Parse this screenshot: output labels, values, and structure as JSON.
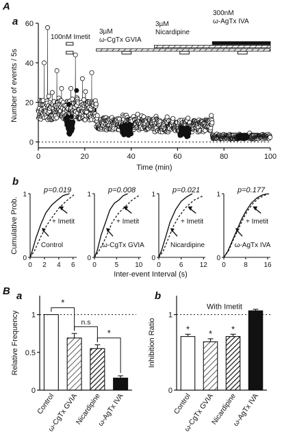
{
  "panel_labels": {
    "A": "A",
    "a_top": "a",
    "b_mid": "b",
    "B": "B",
    "a_bottom": "a",
    "b_bottom": "b"
  },
  "colors": {
    "ink": "#111111",
    "open_marker": "#ffffff",
    "filled_marker": "#111111"
  },
  "chart_data": [
    {
      "id": "A-a",
      "type": "scatter",
      "title": "",
      "xlabel": "Time (min)",
      "ylabel": "Number of events / 5s",
      "xlim": [
        0,
        100
      ],
      "ylim": [
        -3,
        60
      ],
      "xticks": [
        "0",
        "20",
        "40",
        "60",
        "80",
        "100"
      ],
      "yticks": [
        "0",
        "20",
        "40",
        "60"
      ],
      "baseline": {
        "y": 0,
        "style": "dotted"
      },
      "annotations": [
        {
          "text": "100nM Imetit",
          "x_start": 12,
          "x_end": 15
        },
        {
          "text": "3µM",
          "line2": "ω-CgTx GVIA",
          "x_start": 25,
          "x_end": 100,
          "bar_from": 25
        },
        {
          "text": "3µM",
          "line2": "Nicardipine",
          "x_start": 50,
          "x_end": 100,
          "bar_from": 50
        },
        {
          "text": "300nM",
          "line2": "ω-AgTx IVA",
          "x_start": 75,
          "x_end": 100,
          "bar_from": 75
        }
      ],
      "imetit_applications": [
        [
          12,
          15
        ],
        [
          36,
          40
        ],
        [
          61,
          65
        ],
        [
          86,
          90
        ]
      ],
      "series": [
        {
          "name": "",
          "marker": "open",
          "segments": [
            {
              "t_start": 0,
              "t_end": 25,
              "mean": 16,
              "spread": 5,
              "jitter": 7
            },
            {
              "t_start": 25,
              "t_end": 50,
              "mean": 9,
              "spread": 3,
              "jitter": 3
            },
            {
              "t_start": 50,
              "t_end": 75,
              "mean": 8,
              "spread": 3,
              "jitter": 3
            },
            {
              "t_start": 75,
              "t_end": 100,
              "mean": 2.5,
              "spread": 1,
              "jitter": 1
            }
          ],
          "peaks": [
            [
              4,
              57.8
            ],
            [
              2.5,
              40
            ],
            [
              8,
              36
            ],
            [
              16,
              44
            ],
            [
              10,
              27
            ],
            [
              19,
              32
            ],
            [
              23,
              35
            ],
            [
              14,
              27
            ],
            [
              6,
              25
            ]
          ]
        },
        {
          "name": "",
          "marker": "filled",
          "segments": [
            {
              "t_start": 12,
              "t_end": 15,
              "mean": 8,
              "spread": 5,
              "jitter": 0
            },
            {
              "t_start": 36,
              "t_end": 40,
              "mean": 6,
              "spread": 3,
              "jitter": 0
            },
            {
              "t_start": 61,
              "t_end": 65,
              "mean": 5,
              "spread": 2.5,
              "jitter": 0
            },
            {
              "t_start": 86,
              "t_end": 90,
              "mean": 2.5,
              "spread": 0.8,
              "jitter": 0
            }
          ],
          "peaks": [
            [
              16.5,
              26
            ],
            [
              13.2,
              19
            ]
          ]
        }
      ]
    },
    {
      "id": "A-b",
      "type": "line",
      "title": "",
      "xlabel": "Inter-event Interval (s)",
      "ylabel": "Cumulative Prob.",
      "panels": [
        {
          "p": "p=0.019",
          "xticks": [
            "0",
            "2",
            "4",
            "6"
          ],
          "xmax": 6.5,
          "condition": "Control",
          "imetit_label": "+ Imetit",
          "solid": [
            [
              0,
              0
            ],
            [
              0.3,
              0.1
            ],
            [
              0.8,
              0.3
            ],
            [
              1.5,
              0.52
            ],
            [
              2.2,
              0.7
            ],
            [
              3,
              0.82
            ],
            [
              3.8,
              0.9
            ],
            [
              4.6,
              0.97
            ],
            [
              5.5,
              1
            ]
          ],
          "dashed": [
            [
              0,
              0
            ],
            [
              0.6,
              0.1
            ],
            [
              1.4,
              0.3
            ],
            [
              2.3,
              0.5
            ],
            [
              3.2,
              0.65
            ],
            [
              4,
              0.77
            ],
            [
              5,
              0.88
            ],
            [
              6.3,
              1
            ]
          ]
        },
        {
          "p": "p=0.008",
          "xticks": [
            "0",
            "5",
            "10"
          ],
          "xmax": 10.5,
          "condition": "ω-CgTx GVIA",
          "imetit_label": "+ Imetit",
          "solid": [
            [
              0,
              0
            ],
            [
              0.6,
              0.1
            ],
            [
              1.5,
              0.35
            ],
            [
              2.5,
              0.55
            ],
            [
              3.5,
              0.75
            ],
            [
              4.5,
              0.85
            ],
            [
              5.5,
              0.9
            ],
            [
              6.5,
              0.97
            ],
            [
              7.5,
              1
            ]
          ],
          "dashed": [
            [
              0,
              0
            ],
            [
              1,
              0.1
            ],
            [
              2.5,
              0.3
            ],
            [
              4,
              0.55
            ],
            [
              5.5,
              0.7
            ],
            [
              7,
              0.8
            ],
            [
              8.5,
              0.9
            ],
            [
              10,
              0.97
            ]
          ]
        },
        {
          "p": "p=0.021",
          "xticks": [
            "0",
            "6",
            "12"
          ],
          "xmax": 12.5,
          "condition": "Nicardipine",
          "imetit_label": "+ Imetit",
          "solid": [
            [
              0,
              0
            ],
            [
              0.8,
              0.12
            ],
            [
              2,
              0.35
            ],
            [
              3,
              0.55
            ],
            [
              4.5,
              0.75
            ],
            [
              6,
              0.88
            ],
            [
              7.5,
              0.95
            ],
            [
              9,
              1
            ]
          ],
          "dashed": [
            [
              0,
              0
            ],
            [
              1.2,
              0.1
            ],
            [
              2.6,
              0.3
            ],
            [
              4,
              0.5
            ],
            [
              5.5,
              0.65
            ],
            [
              7.5,
              0.8
            ],
            [
              9.5,
              0.9
            ],
            [
              12,
              0.97
            ]
          ]
        },
        {
          "p": "p=0.177",
          "xticks": [
            "0",
            "8",
            "16"
          ],
          "xmax": 17,
          "condition": "ω-AgTx IVA",
          "imetit_label": "+ Imetit",
          "solid": [
            [
              0,
              0
            ],
            [
              1.5,
              0.1
            ],
            [
              3.5,
              0.3
            ],
            [
              5,
              0.45
            ],
            [
              6.5,
              0.6
            ],
            [
              8,
              0.72
            ],
            [
              10,
              0.85
            ],
            [
              12,
              0.93
            ],
            [
              14,
              0.98
            ],
            [
              16,
              1
            ]
          ],
          "dashed": [
            [
              0,
              0
            ],
            [
              1.7,
              0.1
            ],
            [
              3.7,
              0.3
            ],
            [
              5.4,
              0.45
            ],
            [
              7,
              0.6
            ],
            [
              8.5,
              0.72
            ],
            [
              10.5,
              0.84
            ],
            [
              12.5,
              0.92
            ],
            [
              14.5,
              0.97
            ],
            [
              16.5,
              1
            ]
          ]
        }
      ],
      "ylim": [
        0,
        1
      ],
      "yticks": [
        "0",
        "1"
      ]
    },
    {
      "id": "B-a",
      "type": "bar",
      "title": "",
      "xlabel": "",
      "ylabel": "Relative Frequency",
      "ylim": [
        0,
        1.25
      ],
      "yticks": [
        "0",
        "0.5",
        "1"
      ],
      "reference_line": {
        "y": 1,
        "style": "dotted"
      },
      "categories": [
        "Control",
        "ω-CgTx GVIA",
        "Nicardipine",
        "ω-AgTx IVA"
      ],
      "values": [
        1.0,
        0.69,
        0.55,
        0.16
      ],
      "errors": [
        0,
        0.06,
        0.05,
        0.03
      ],
      "fills": [
        "open",
        "hatch",
        "hatch-dense",
        "solid"
      ],
      "significance": [
        {
          "from": 0,
          "to": 1,
          "label": "*"
        },
        {
          "from": 1,
          "to": 2,
          "label": "n.s"
        },
        {
          "from": 2,
          "to": 3,
          "label": "*"
        }
      ]
    },
    {
      "id": "B-b",
      "type": "bar",
      "title": "",
      "xlabel": "",
      "ylabel": "Inhibition Ratio",
      "ylim": [
        0,
        1.25
      ],
      "yticks": [
        "0",
        "1"
      ],
      "reference_line": {
        "y": 1,
        "style": "dotted",
        "label": "With Imetit"
      },
      "categories": [
        "Control",
        "ω-CgTx GVIA",
        "Nicardipine",
        "ω-AgTx IVA"
      ],
      "values": [
        0.71,
        0.64,
        0.71,
        1.05
      ],
      "errors": [
        0.03,
        0.04,
        0.03,
        0.02
      ],
      "fills": [
        "open",
        "hatch",
        "hatch-dense",
        "solid"
      ],
      "markers": [
        "*",
        "*",
        "*",
        ""
      ]
    }
  ]
}
